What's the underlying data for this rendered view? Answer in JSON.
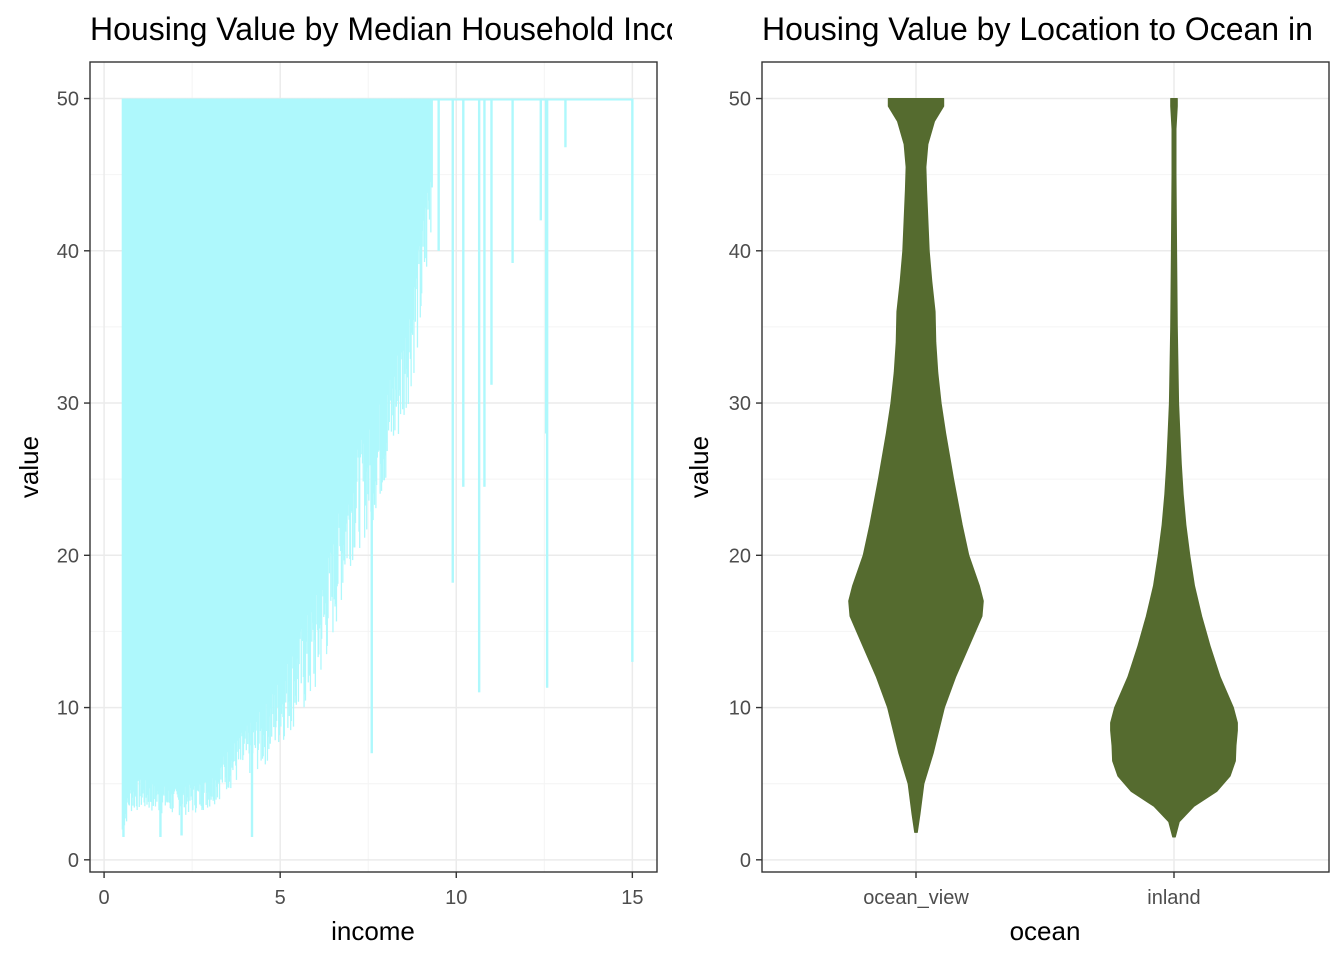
{
  "colors": {
    "bar_fill": "#aef8fc",
    "violin_fill": "#556b2f",
    "grid_major": "#ebebeb",
    "grid_minor": "#f4f4f4",
    "panel_border": "#333333",
    "tick_label": "#4d4d4d"
  },
  "chart_data": [
    {
      "type": "bar",
      "title": "Housing Value by Median Household Income",
      "xlabel": "income",
      "ylabel": "value",
      "xlim": [
        -0.4,
        15.7
      ],
      "ylim": [
        -0.8,
        52.4
      ],
      "x_ticks": [
        0,
        5,
        10,
        15
      ],
      "y_ticks": [
        0,
        10,
        20,
        30,
        40,
        50
      ],
      "x_tick_labels": [
        "0",
        "5",
        "10",
        "15"
      ],
      "y_tick_labels": [
        "0",
        "10",
        "20",
        "30",
        "40",
        "50"
      ],
      "grid": true,
      "legend": "none",
      "top": 50,
      "lower_envelope": {
        "income": [
          0.5,
          0.7,
          1.0,
          1.5,
          2.0,
          2.5,
          3.0,
          3.5,
          4.0,
          4.5,
          5.0,
          5.5,
          6.0,
          6.5,
          7.0,
          7.5,
          8.0,
          8.5,
          9.0,
          9.3
        ],
        "value": [
          2.0,
          4.0,
          4.3,
          4.0,
          3.8,
          4.0,
          4.5,
          6.0,
          7.0,
          8.0,
          10.0,
          12.0,
          14.0,
          18.0,
          23.0,
          25.0,
          28.0,
          32.0,
          38.0,
          45.0
        ]
      },
      "spikes": [
        {
          "x": 0.55,
          "low": 1.5
        },
        {
          "x": 1.35,
          "low": 22.5
        },
        {
          "x": 1.6,
          "low": 20.0
        },
        {
          "x": 3.1,
          "low": 45.0
        },
        {
          "x": 7.6,
          "low": 7.0
        },
        {
          "x": 9.5,
          "low": 40.0
        },
        {
          "x": 9.9,
          "low": 18.2
        },
        {
          "x": 10.2,
          "low": 24.5
        },
        {
          "x": 10.65,
          "low": 11.0
        },
        {
          "x": 10.8,
          "low": 24.5
        },
        {
          "x": 11.0,
          "low": 31.2
        },
        {
          "x": 11.6,
          "low": 39.2
        },
        {
          "x": 12.4,
          "low": 42.0
        },
        {
          "x": 12.55,
          "low": 28.0
        },
        {
          "x": 12.58,
          "low": 11.3
        },
        {
          "x": 13.1,
          "low": 46.8
        },
        {
          "x": 15.0,
          "low": 13.0
        },
        {
          "x": 4.2,
          "low": 1.5
        },
        {
          "x": 2.2,
          "low": 1.6
        },
        {
          "x": 1.6,
          "low": 1.5
        }
      ]
    },
    {
      "type": "violin",
      "title": "Housing Value by Location to Ocean in",
      "xlabel": "ocean",
      "ylabel": "value",
      "categories": [
        "ocean_view",
        "inland"
      ],
      "ylim": [
        -0.8,
        52.4
      ],
      "y_ticks": [
        0,
        10,
        20,
        30,
        40,
        50
      ],
      "y_tick_labels": [
        "0",
        "10",
        "20",
        "30",
        "40",
        "50"
      ],
      "grid": true,
      "legend": "none",
      "series": [
        {
          "category": "ocean_view",
          "value": [
            1.8,
            3.0,
            5.0,
            7.0,
            10.0,
            12.0,
            14.0,
            16.0,
            17.0,
            18.0,
            20.0,
            22.0,
            25.0,
            28.0,
            30.0,
            32.0,
            34.0,
            36.0,
            38.0,
            40.0,
            42.0,
            44.0,
            45.5,
            47.0,
            48.5,
            49.5,
            50.0
          ],
          "half_width": [
            0.02,
            0.06,
            0.12,
            0.26,
            0.43,
            0.6,
            0.8,
            1.0,
            1.02,
            0.96,
            0.8,
            0.7,
            0.57,
            0.45,
            0.38,
            0.33,
            0.3,
            0.29,
            0.24,
            0.2,
            0.18,
            0.16,
            0.15,
            0.18,
            0.28,
            0.42,
            0.42
          ]
        },
        {
          "category": "inland",
          "value": [
            1.5,
            2.5,
            3.5,
            4.5,
            5.5,
            6.5,
            7.5,
            8.5,
            9.0,
            10.0,
            11.0,
            12.0,
            14.0,
            16.0,
            18.0,
            20.0,
            22.0,
            24.0,
            26.0,
            28.0,
            30.0,
            35.0,
            40.0,
            45.0,
            48.0,
            49.5,
            50.0
          ],
          "half_width": [
            0.02,
            0.08,
            0.3,
            0.65,
            0.85,
            0.93,
            0.94,
            0.96,
            0.96,
            0.9,
            0.8,
            0.7,
            0.55,
            0.42,
            0.31,
            0.24,
            0.18,
            0.14,
            0.11,
            0.09,
            0.07,
            0.05,
            0.04,
            0.03,
            0.03,
            0.05,
            0.05
          ]
        }
      ]
    }
  ]
}
